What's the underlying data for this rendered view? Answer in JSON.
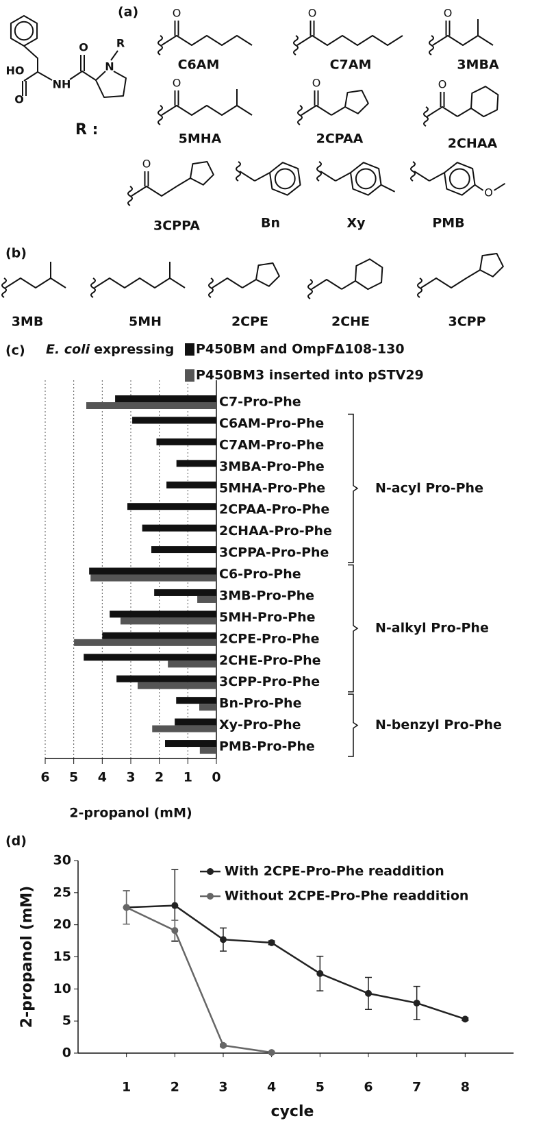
{
  "panel_labels": [
    "(a)",
    "(b)",
    "(c)",
    "(d)"
  ],
  "scaffold": {
    "atoms": [
      "HO",
      "NH",
      "N",
      "R",
      "O"
    ],
    "r_label": "R :"
  },
  "structures_a": [
    "C6AM",
    "C7AM",
    "3MBA",
    "5MHA",
    "2CPAA",
    "2CHAA",
    "3CPPA",
    "Bn",
    "Xy",
    "PMB"
  ],
  "structures_b": [
    "3MB",
    "5MH",
    "2CPE",
    "2CHE",
    "3CPP"
  ],
  "atom_o": "O",
  "chart_data": [
    {
      "type": "bar",
      "orientation": "horizontal",
      "categories": [
        "C7-Pro-Phe",
        "C6AM-Pro-Phe",
        "C7AM-Pro-Phe",
        "3MBA-Pro-Phe",
        "5MHA-Pro-Phe",
        "2CPAA-Pro-Phe",
        "2CHAA-Pro-Phe",
        "3CPPA-Pro-Phe",
        "C6-Pro-Phe",
        "3MB-Pro-Phe",
        "5MH-Pro-Phe",
        "2CPE-Pro-Phe",
        "2CHE-Pro-Phe",
        "3CPP-Pro-Phe",
        "Bn-Pro-Phe",
        "Xy-Pro-Phe",
        "PMB-Pro-Phe"
      ],
      "legend_title": [
        "E. coli",
        "expressing"
      ],
      "series": [
        {
          "name": "P450BM and OmpFΔ108-130",
          "color": "#111111",
          "values": [
            3.55,
            2.95,
            2.1,
            1.4,
            1.75,
            3.12,
            2.6,
            2.28,
            4.46,
            2.18,
            3.74,
            4.0,
            4.65,
            3.5,
            1.41,
            1.46,
            1.8
          ]
        },
        {
          "name": "P450BM3 inserted into pSTV29",
          "color": "#555555",
          "values": [
            4.56,
            0,
            0,
            0,
            0,
            0,
            0,
            0,
            4.41,
            0.67,
            3.36,
            4.99,
            1.7,
            2.76,
            0.6,
            2.25,
            0.58
          ]
        }
      ],
      "groups": [
        {
          "label": "N-acyl Pro-Phe",
          "span": [
            1,
            7
          ]
        },
        {
          "label": "N-alkyl Pro-Phe",
          "span": [
            8,
            13
          ]
        },
        {
          "label": "N-benzyl Pro-Phe",
          "span": [
            14,
            16
          ]
        }
      ],
      "xlim": [
        6,
        0
      ],
      "xticks": [
        6,
        5,
        4,
        3,
        2,
        1,
        0
      ],
      "xlabel": "2-propanol (mM)",
      "grid": true
    },
    {
      "type": "line",
      "x": [
        1,
        2,
        3,
        4,
        5,
        6,
        7,
        8
      ],
      "series": [
        {
          "name": "With 2CPE-Pro-Phe readdition",
          "color": "#222222",
          "values": [
            22.7,
            23.0,
            17.7,
            17.2,
            12.4,
            9.3,
            7.8,
            5.3
          ],
          "errors": [
            2.6,
            5.6,
            1.8,
            0.3,
            2.7,
            2.5,
            2.6,
            0.2
          ]
        },
        {
          "name": "Without 2CPE-Pro-Phe readdition",
          "color": "#666666",
          "values": [
            22.7,
            19.1,
            1.2,
            0.1,
            null,
            null,
            null,
            null
          ],
          "errors": [
            2.6,
            1.6,
            0.2,
            0.1,
            null,
            null,
            null,
            null
          ]
        }
      ],
      "xlim": [
        0,
        9
      ],
      "xticks": [
        1,
        2,
        3,
        4,
        5,
        6,
        7,
        8
      ],
      "ylim": [
        0,
        30
      ],
      "yticks": [
        0,
        5,
        10,
        15,
        20,
        25,
        30
      ],
      "xlabel": "cycle",
      "ylabel": "2-propanol (mM)",
      "legend": "upper right",
      "grid": false
    }
  ]
}
